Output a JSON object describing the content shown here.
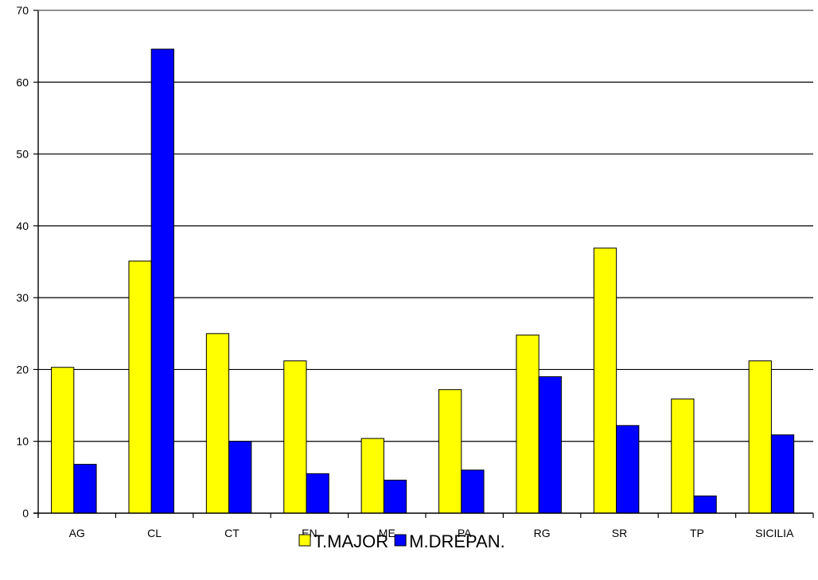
{
  "chart_data": {
    "type": "bar",
    "title": "",
    "xlabel": "",
    "ylabel": "",
    "ylim": [
      0,
      70
    ],
    "yticks": [
      0,
      10,
      20,
      30,
      40,
      50,
      60,
      70
    ],
    "grid": true,
    "legend_placement": "bottom",
    "categories": [
      "AG",
      "CL",
      "CT",
      "EN",
      "ME",
      "PA",
      "RG",
      "SR",
      "TP",
      "SICILIA"
    ],
    "series": [
      {
        "name": "T.MAJOR",
        "color": "#ffff00",
        "values": [
          20.3,
          35.1,
          25.0,
          21.2,
          10.4,
          17.2,
          24.8,
          36.9,
          15.9,
          21.2
        ]
      },
      {
        "name": "M.DREPAN.",
        "color": "#0000ff",
        "values": [
          6.8,
          64.6,
          10.0,
          5.5,
          4.6,
          6.0,
          19.0,
          12.2,
          2.4,
          10.9
        ]
      }
    ]
  }
}
